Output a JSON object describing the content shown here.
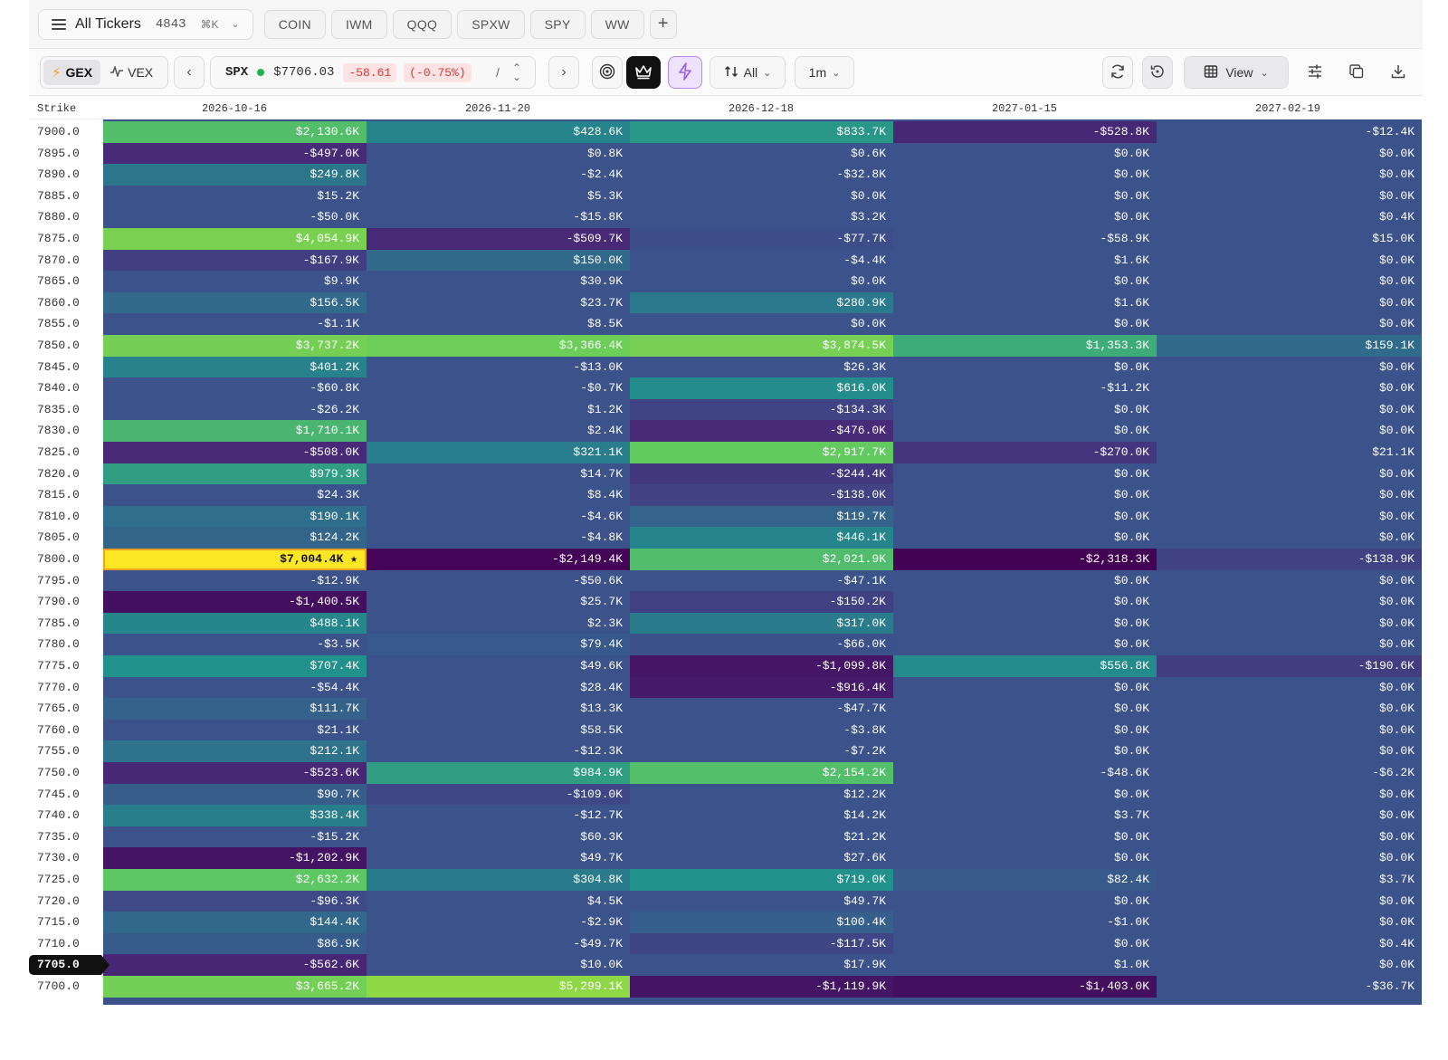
{
  "tabbar": {
    "all_tickers_label": "All Tickers",
    "count": "4843",
    "shortcut": "⌘K",
    "tickers": [
      "COIN",
      "IWM",
      "QQQ",
      "SPXW",
      "SPY",
      "WW"
    ],
    "add_label": "+"
  },
  "toolbar": {
    "gex_label": "GEX",
    "vex_label": "VEX",
    "symbol": "SPX",
    "price": "$7706.03",
    "change": "-58.61",
    "change_pct": "(-0.75%)",
    "slash": "/",
    "sort_label": "All",
    "interval": "1m",
    "view_label": "View"
  },
  "table": {
    "strike_header": "Strike",
    "expirations": [
      "2026-10-16",
      "2026-11-20",
      "2026-12-18",
      "2027-01-15",
      "2027-02-19"
    ],
    "current_strike": "7705.0",
    "king_marker": "★",
    "rows": [
      {
        "strike": "7900.0",
        "v": [
          "$2,130.6K",
          "$428.6K",
          "$833.7K",
          "-$528.8K",
          "-$12.4K"
        ]
      },
      {
        "strike": "7895.0",
        "v": [
          "-$497.0K",
          "$0.8K",
          "$0.6K",
          "$0.0K",
          "$0.0K"
        ]
      },
      {
        "strike": "7890.0",
        "v": [
          "$249.8K",
          "-$2.4K",
          "-$32.8K",
          "$0.0K",
          "$0.0K"
        ]
      },
      {
        "strike": "7885.0",
        "v": [
          "$15.2K",
          "$5.3K",
          "$0.0K",
          "$0.0K",
          "$0.0K"
        ]
      },
      {
        "strike": "7880.0",
        "v": [
          "-$50.0K",
          "-$15.8K",
          "$3.2K",
          "$0.0K",
          "$0.4K"
        ]
      },
      {
        "strike": "7875.0",
        "v": [
          "$4,054.9K",
          "-$509.7K",
          "-$77.7K",
          "-$58.9K",
          "$15.0K"
        ]
      },
      {
        "strike": "7870.0",
        "v": [
          "-$167.9K",
          "$150.0K",
          "-$4.4K",
          "$1.6K",
          "$0.0K"
        ]
      },
      {
        "strike": "7865.0",
        "v": [
          "$9.9K",
          "$30.9K",
          "$0.0K",
          "$0.0K",
          "$0.0K"
        ]
      },
      {
        "strike": "7860.0",
        "v": [
          "$156.5K",
          "$23.7K",
          "$280.9K",
          "$1.6K",
          "$0.0K"
        ]
      },
      {
        "strike": "7855.0",
        "v": [
          "-$1.1K",
          "$8.5K",
          "$0.0K",
          "$0.0K",
          "$0.0K"
        ]
      },
      {
        "strike": "7850.0",
        "v": [
          "$3,737.2K",
          "$3,366.4K",
          "$3,874.5K",
          "$1,353.3K",
          "$159.1K"
        ]
      },
      {
        "strike": "7845.0",
        "v": [
          "$401.2K",
          "-$13.0K",
          "$26.3K",
          "$0.0K",
          "$0.0K"
        ]
      },
      {
        "strike": "7840.0",
        "v": [
          "-$60.8K",
          "-$0.7K",
          "$616.0K",
          "-$11.2K",
          "$0.0K"
        ]
      },
      {
        "strike": "7835.0",
        "v": [
          "-$26.2K",
          "$1.2K",
          "-$134.3K",
          "$0.0K",
          "$0.0K"
        ]
      },
      {
        "strike": "7830.0",
        "v": [
          "$1,710.1K",
          "$2.4K",
          "-$476.0K",
          "$0.0K",
          "$0.0K"
        ]
      },
      {
        "strike": "7825.0",
        "v": [
          "-$508.0K",
          "$321.1K",
          "$2,917.7K",
          "-$270.0K",
          "$21.1K"
        ]
      },
      {
        "strike": "7820.0",
        "v": [
          "$979.3K",
          "$14.7K",
          "-$244.4K",
          "$0.0K",
          "$0.0K"
        ]
      },
      {
        "strike": "7815.0",
        "v": [
          "$24.3K",
          "$8.4K",
          "-$138.0K",
          "$0.0K",
          "$0.0K"
        ]
      },
      {
        "strike": "7810.0",
        "v": [
          "$190.1K",
          "-$4.6K",
          "$119.7K",
          "$0.0K",
          "$0.0K"
        ]
      },
      {
        "strike": "7805.0",
        "v": [
          "$124.2K",
          "-$4.8K",
          "$446.1K",
          "$0.0K",
          "$0.0K"
        ]
      },
      {
        "strike": "7800.0",
        "v": [
          "$7,004.4K",
          "-$2,149.4K",
          "$2,021.9K",
          "-$2,318.3K",
          "-$138.9K"
        ],
        "king": 0
      },
      {
        "strike": "7795.0",
        "v": [
          "-$12.9K",
          "-$50.6K",
          "-$47.1K",
          "$0.0K",
          "$0.0K"
        ]
      },
      {
        "strike": "7790.0",
        "v": [
          "-$1,400.5K",
          "$25.7K",
          "-$150.2K",
          "$0.0K",
          "$0.0K"
        ]
      },
      {
        "strike": "7785.0",
        "v": [
          "$488.1K",
          "$2.3K",
          "$317.0K",
          "$0.0K",
          "$0.0K"
        ]
      },
      {
        "strike": "7780.0",
        "v": [
          "-$3.5K",
          "$79.4K",
          "-$66.0K",
          "$0.0K",
          "$0.0K"
        ]
      },
      {
        "strike": "7775.0",
        "v": [
          "$707.4K",
          "$49.6K",
          "-$1,099.8K",
          "$556.8K",
          "-$190.6K"
        ]
      },
      {
        "strike": "7770.0",
        "v": [
          "-$54.4K",
          "$28.4K",
          "-$916.4K",
          "$0.0K",
          "$0.0K"
        ]
      },
      {
        "strike": "7765.0",
        "v": [
          "$111.7K",
          "$13.3K",
          "-$47.7K",
          "$0.0K",
          "$0.0K"
        ]
      },
      {
        "strike": "7760.0",
        "v": [
          "$21.1K",
          "$58.5K",
          "-$3.8K",
          "$0.0K",
          "$0.0K"
        ]
      },
      {
        "strike": "7755.0",
        "v": [
          "$212.1K",
          "-$12.3K",
          "-$7.2K",
          "$0.0K",
          "$0.0K"
        ]
      },
      {
        "strike": "7750.0",
        "v": [
          "-$523.6K",
          "$984.9K",
          "$2,154.2K",
          "-$48.6K",
          "-$6.2K"
        ]
      },
      {
        "strike": "7745.0",
        "v": [
          "$90.7K",
          "-$109.0K",
          "$12.2K",
          "$0.0K",
          "$0.0K"
        ]
      },
      {
        "strike": "7740.0",
        "v": [
          "$338.4K",
          "-$12.7K",
          "$14.2K",
          "$3.7K",
          "$0.0K"
        ]
      },
      {
        "strike": "7735.0",
        "v": [
          "-$15.2K",
          "$60.3K",
          "$21.2K",
          "$0.0K",
          "$0.0K"
        ]
      },
      {
        "strike": "7730.0",
        "v": [
          "-$1,202.9K",
          "$49.7K",
          "$27.6K",
          "$0.0K",
          "$0.0K"
        ]
      },
      {
        "strike": "7725.0",
        "v": [
          "$2,632.2K",
          "$304.8K",
          "$719.0K",
          "$82.4K",
          "$3.7K"
        ]
      },
      {
        "strike": "7720.0",
        "v": [
          "-$96.3K",
          "$4.5K",
          "$49.7K",
          "$0.0K",
          "$0.0K"
        ]
      },
      {
        "strike": "7715.0",
        "v": [
          "$144.4K",
          "-$2.9K",
          "$100.4K",
          "-$1.0K",
          "$0.0K"
        ]
      },
      {
        "strike": "7710.0",
        "v": [
          "$86.9K",
          "-$49.7K",
          "-$117.5K",
          "$0.0K",
          "$0.4K"
        ]
      },
      {
        "strike": "7705.0",
        "v": [
          "-$562.6K",
          "$10.0K",
          "$17.9K",
          "$1.0K",
          "$0.0K"
        ],
        "current": true
      },
      {
        "strike": "7700.0",
        "v": [
          "$3,665.2K",
          "$5,299.1K",
          "-$1,119.9K",
          "-$1,403.0K",
          "-$36.7K"
        ]
      }
    ]
  },
  "colors": {
    "neutral": "#3b518b",
    "pos_mid": "#21918c",
    "pos_high": "#5ec962",
    "pos_max": "#8fd744",
    "neg_high": "#440154",
    "king": "#fde725",
    "change_red": "#d93636",
    "live_green": "#22b24c"
  }
}
